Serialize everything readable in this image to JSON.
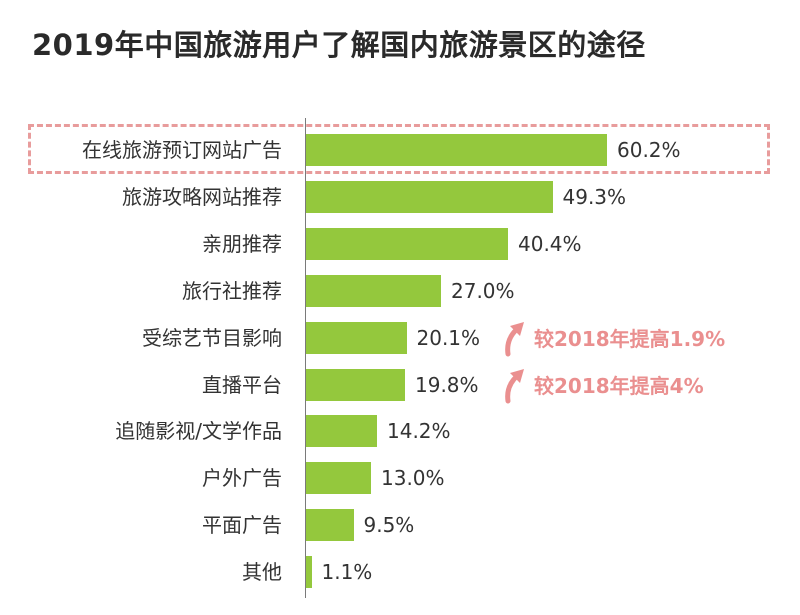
{
  "chart_data": {
    "type": "bar",
    "orientation": "horizontal",
    "title": "2019年中国旅游用户了解国内旅游景区的途径",
    "categories": [
      "在线旅游预订网站广告",
      "旅游攻略网站推荐",
      "亲朋推荐",
      "旅行社推荐",
      "受综艺节目影响",
      "直播平台",
      "追随影视/文学作品",
      "户外广告",
      "平面广告",
      "其他"
    ],
    "values": [
      60.2,
      49.3,
      40.4,
      27.0,
      20.1,
      19.8,
      14.2,
      13.0,
      9.5,
      1.1
    ],
    "value_labels": [
      "60.2%",
      "49.3%",
      "40.4%",
      "27.0%",
      "20.1%",
      "19.8%",
      "14.2%",
      "13.0%",
      "9.5%",
      "1.1%"
    ],
    "highlighted_category": "在线旅游预订网站广告",
    "bar_color": "#94c83d",
    "annotations": [
      {
        "category": "受综艺节目影响",
        "text": "较2018年提高1.9%"
      },
      {
        "category": "直播平台",
        "text": "较2018年提高4%"
      }
    ],
    "annotation_color": "#ea8f8f",
    "highlight_color": "#e89c9c",
    "annotation_icon": "up-arrow-icon"
  }
}
